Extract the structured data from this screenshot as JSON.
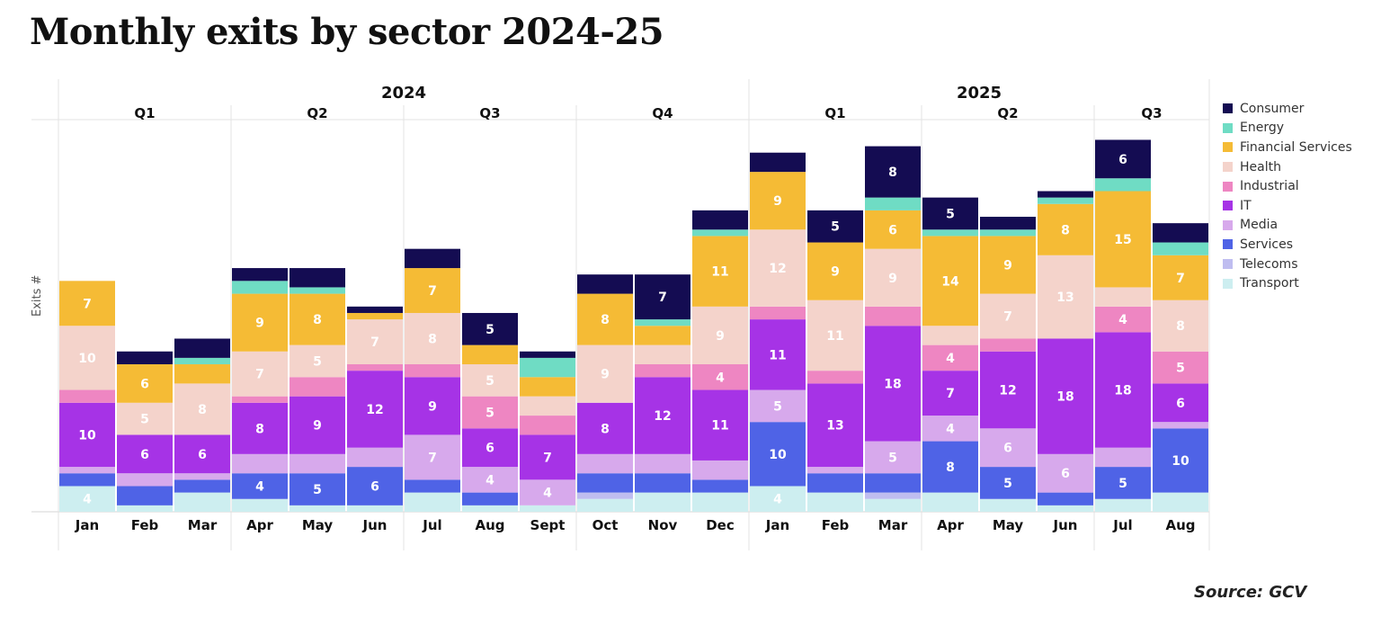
{
  "title": "Monthly exits by sector 2024-25",
  "source": "Source: GCV",
  "chart_data": {
    "type": "bar",
    "stacked": true,
    "title": "Monthly exits by sector 2024-25",
    "xlabel": "",
    "ylabel": "Exits #",
    "ylim": [
      0,
      60
    ],
    "grid": false,
    "legend_position": "right",
    "years": [
      {
        "label": "2024",
        "quarters": [
          {
            "label": "Q1",
            "months": 3
          },
          {
            "label": "Q2",
            "months": 3
          },
          {
            "label": "Q3",
            "months": 3
          },
          {
            "label": "Q4",
            "months": 3
          }
        ]
      },
      {
        "label": "2025",
        "quarters": [
          {
            "label": "Q1",
            "months": 3
          },
          {
            "label": "Q2",
            "months": 3
          },
          {
            "label": "Q3",
            "months": 2
          }
        ]
      }
    ],
    "categories": [
      "Jan",
      "Feb",
      "Mar",
      "Apr",
      "May",
      "Jun",
      "Jul",
      "Aug",
      "Sept",
      "Oct",
      "Nov",
      "Dec",
      "Jan",
      "Feb",
      "Mar",
      "Apr",
      "May",
      "Jun",
      "Jul",
      "Aug"
    ],
    "series": [
      {
        "name": "Transport",
        "color": "#cdeef0",
        "values": [
          4,
          1,
          3,
          2,
          1,
          1,
          3,
          1,
          1,
          2,
          3,
          3,
          4,
          3,
          2,
          3,
          2,
          1,
          2,
          3
        ]
      },
      {
        "name": "Telecoms",
        "color": "#bfbdf0",
        "values": [
          0,
          0,
          0,
          0,
          0,
          0,
          0,
          0,
          0,
          1,
          0,
          0,
          0,
          0,
          1,
          0,
          0,
          0,
          0,
          0
        ]
      },
      {
        "name": "Services",
        "color": "#4f63e6",
        "values": [
          2,
          3,
          2,
          4,
          5,
          6,
          2,
          2,
          0,
          3,
          3,
          2,
          10,
          3,
          3,
          8,
          5,
          2,
          5,
          10
        ]
      },
      {
        "name": "Media",
        "color": "#d7a9ec",
        "values": [
          1,
          2,
          1,
          3,
          3,
          3,
          7,
          4,
          4,
          3,
          3,
          3,
          5,
          1,
          5,
          4,
          6,
          6,
          3,
          1
        ]
      },
      {
        "name": "IT",
        "color": "#a633e6",
        "values": [
          10,
          6,
          6,
          8,
          9,
          12,
          9,
          6,
          7,
          8,
          12,
          11,
          11,
          13,
          18,
          7,
          12,
          18,
          18,
          6
        ]
      },
      {
        "name": "Industrial",
        "color": "#ee86c2",
        "values": [
          2,
          0,
          0,
          1,
          3,
          1,
          2,
          5,
          3,
          0,
          2,
          4,
          2,
          2,
          3,
          4,
          2,
          0,
          4,
          5
        ]
      },
      {
        "name": "Health",
        "color": "#f4d3cb",
        "values": [
          10,
          5,
          8,
          7,
          5,
          7,
          8,
          5,
          3,
          9,
          3,
          9,
          12,
          11,
          9,
          3,
          7,
          13,
          3,
          8
        ]
      },
      {
        "name": "Financial Services",
        "color": "#f5bb35",
        "values": [
          7,
          6,
          3,
          9,
          8,
          1,
          7,
          3,
          3,
          8,
          3,
          11,
          9,
          9,
          6,
          14,
          9,
          8,
          15,
          7
        ]
      },
      {
        "name": "Energy",
        "color": "#6fdcc4",
        "values": [
          0,
          0,
          1,
          2,
          1,
          0,
          0,
          0,
          3,
          0,
          1,
          1,
          0,
          0,
          2,
          1,
          1,
          1,
          2,
          2
        ]
      },
      {
        "name": "Consumer",
        "color": "#140c52",
        "values": [
          0,
          2,
          3,
          2,
          3,
          1,
          3,
          5,
          1,
          3,
          7,
          3,
          3,
          5,
          8,
          5,
          2,
          1,
          6,
          3
        ]
      }
    ],
    "legend": [
      "Consumer",
      "Energy",
      "Financial Services",
      "Health",
      "Industrial",
      "IT",
      "Media",
      "Services",
      "Telecoms",
      "Transport"
    ],
    "label_min_value": 4
  }
}
